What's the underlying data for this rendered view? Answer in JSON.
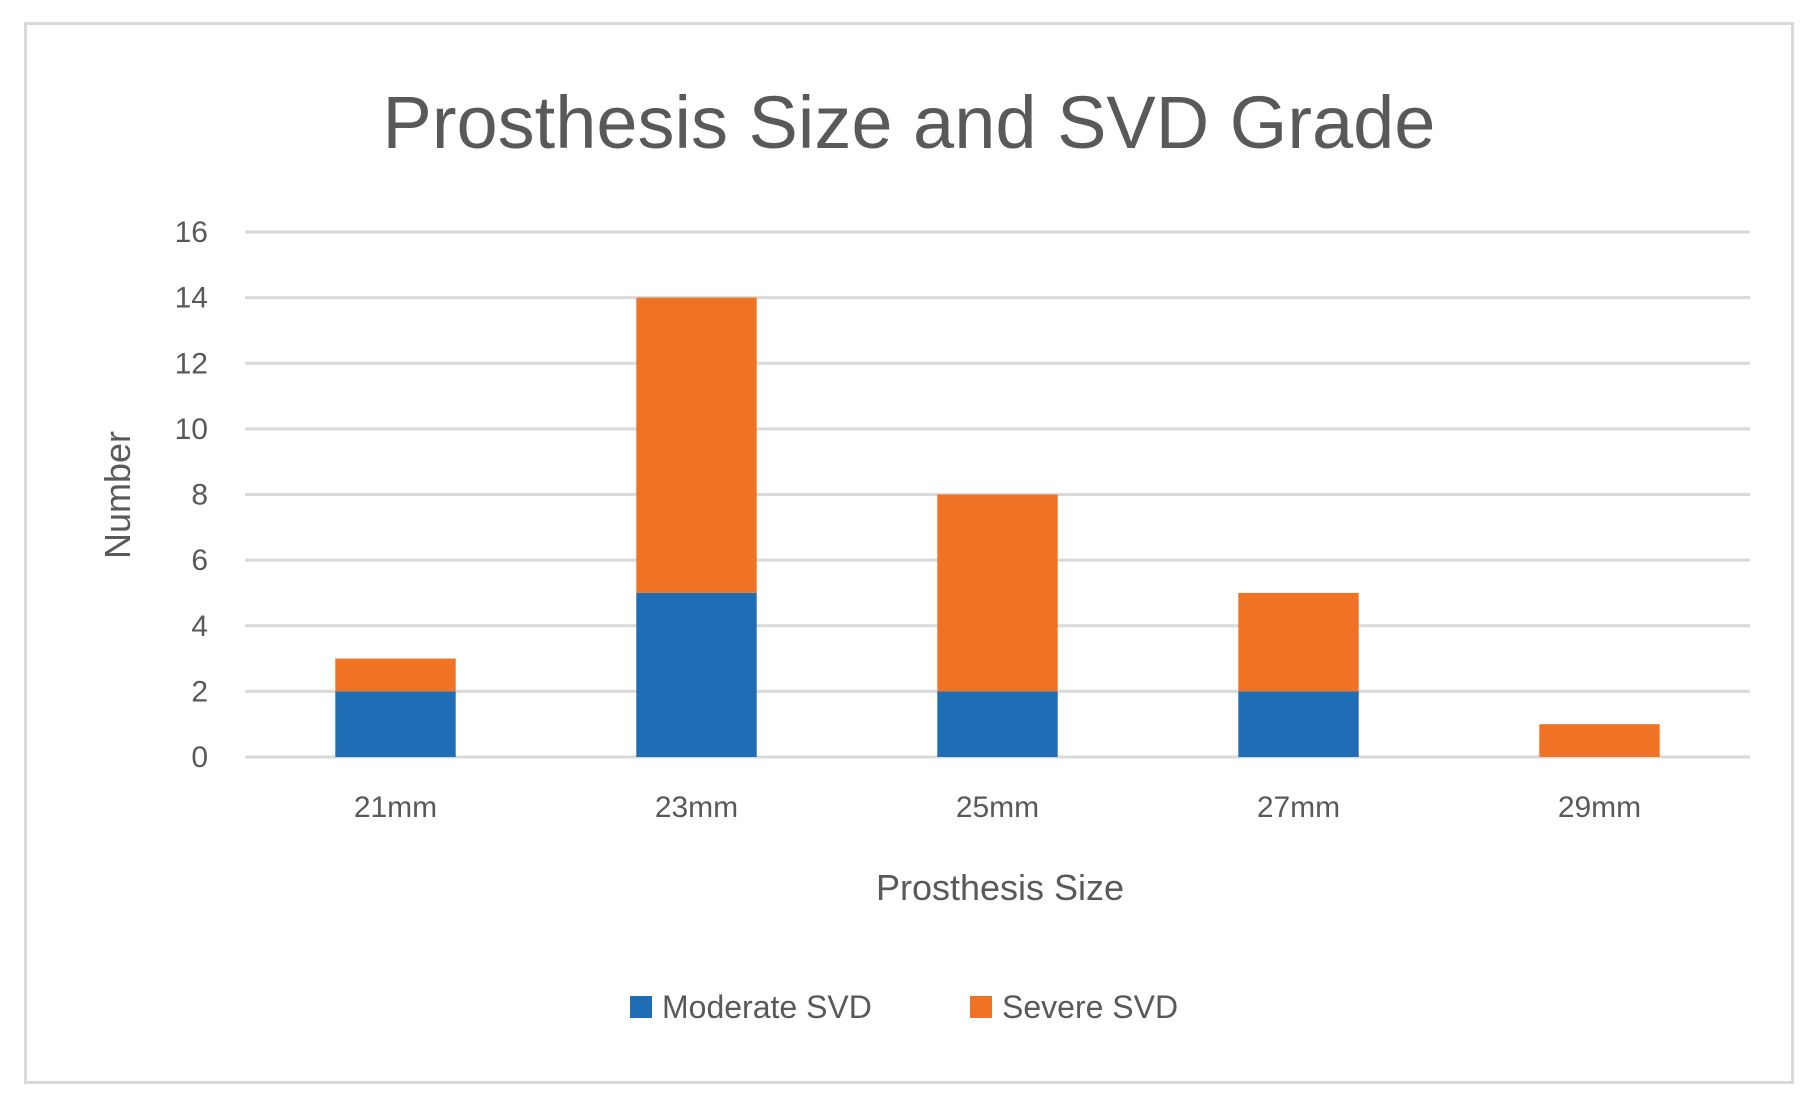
{
  "chart_data": {
    "type": "bar",
    "stacked": true,
    "title": "Prosthesis Size and SVD Grade",
    "xlabel": "Prosthesis Size",
    "ylabel": "Number",
    "categories": [
      "21mm",
      "23mm",
      "25mm",
      "27mm",
      "29mm"
    ],
    "ylim": [
      0,
      16
    ],
    "yticks": [
      0,
      2,
      4,
      6,
      8,
      10,
      12,
      14,
      16
    ],
    "grid": true,
    "legend_position": "bottom",
    "series": [
      {
        "name": "Moderate SVD",
        "color": "#1f6db5",
        "values": [
          2,
          5,
          2,
          2,
          0
        ]
      },
      {
        "name": "Severe SVD",
        "color": "#f07224",
        "values": [
          1,
          9,
          6,
          3,
          1
        ]
      }
    ],
    "colors": {
      "grid": "#d9d9d9",
      "text": "#595959"
    }
  }
}
